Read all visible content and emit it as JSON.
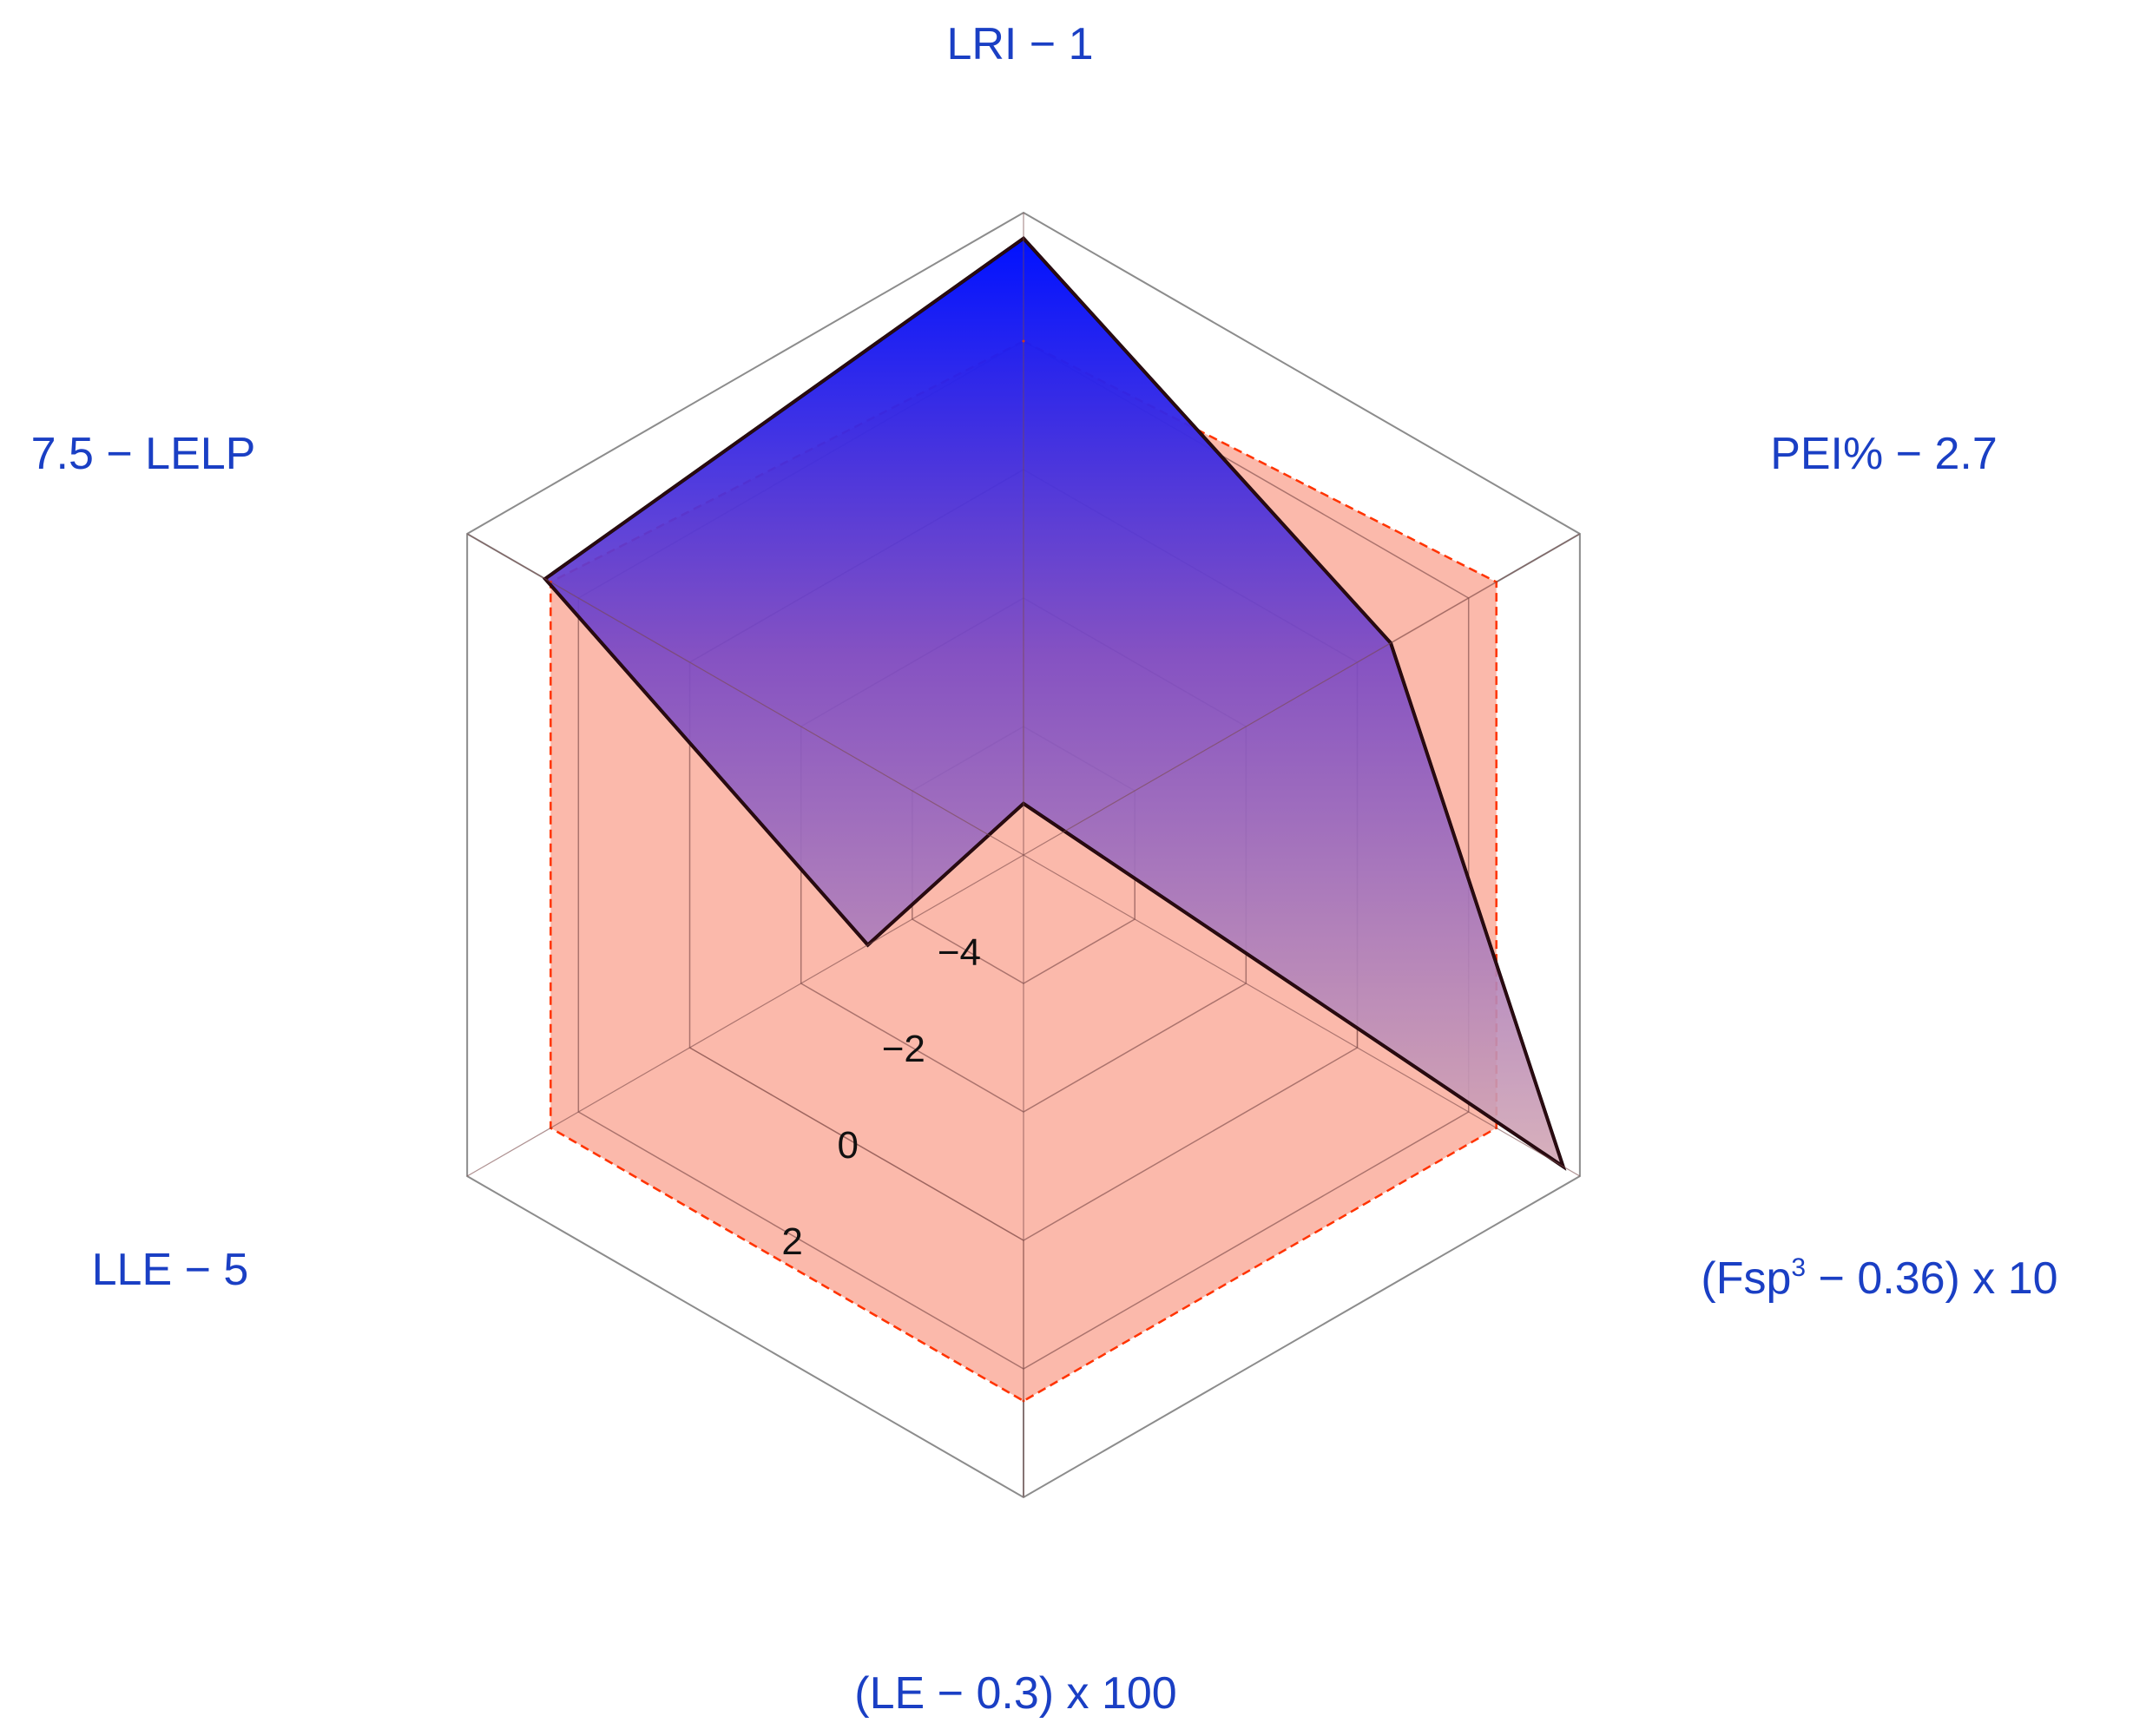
{
  "chart_data": {
    "type": "radar",
    "title": "",
    "axes": [
      {
        "label": "LRI − 1"
      },
      {
        "label": "PEI% − 2.7"
      },
      {
        "label_main": "(Fsp",
        "label_sup": "3",
        "label_tail": " − 0.36) x 10"
      },
      {
        "label": "(LE − 0.3) x 100"
      },
      {
        "label": "LLE −  5"
      },
      {
        "label": "7.5 − LELP"
      }
    ],
    "radial_ticks": [
      "−4",
      "−2",
      "0",
      "2"
    ],
    "radial_tick_values": [
      -4,
      -2,
      0,
      2
    ],
    "rlim": [
      -6,
      4
    ],
    "series": [
      {
        "values": [
          3.6,
          0.6,
          3.7,
          -6.8,
          -3.2,
          2.6
        ],
        "fill": "gradient",
        "fill_top": "#0011ff",
        "fill_bottom": "#d4a8b4",
        "stroke": "#000000",
        "stroke_style": "solid"
      },
      {
        "values": [
          2.0,
          2.5,
          2.5,
          2.5,
          2.5,
          2.5
        ],
        "fill": "#f9a18f",
        "stroke": "#ff3300",
        "stroke_style": "dashed"
      }
    ],
    "frame": "hexagonal-box",
    "grid": "hexagonal-rings",
    "colors": {
      "label": "#1a3fc4",
      "frame": "#888888",
      "outer_fill": "#f7a895"
    }
  }
}
